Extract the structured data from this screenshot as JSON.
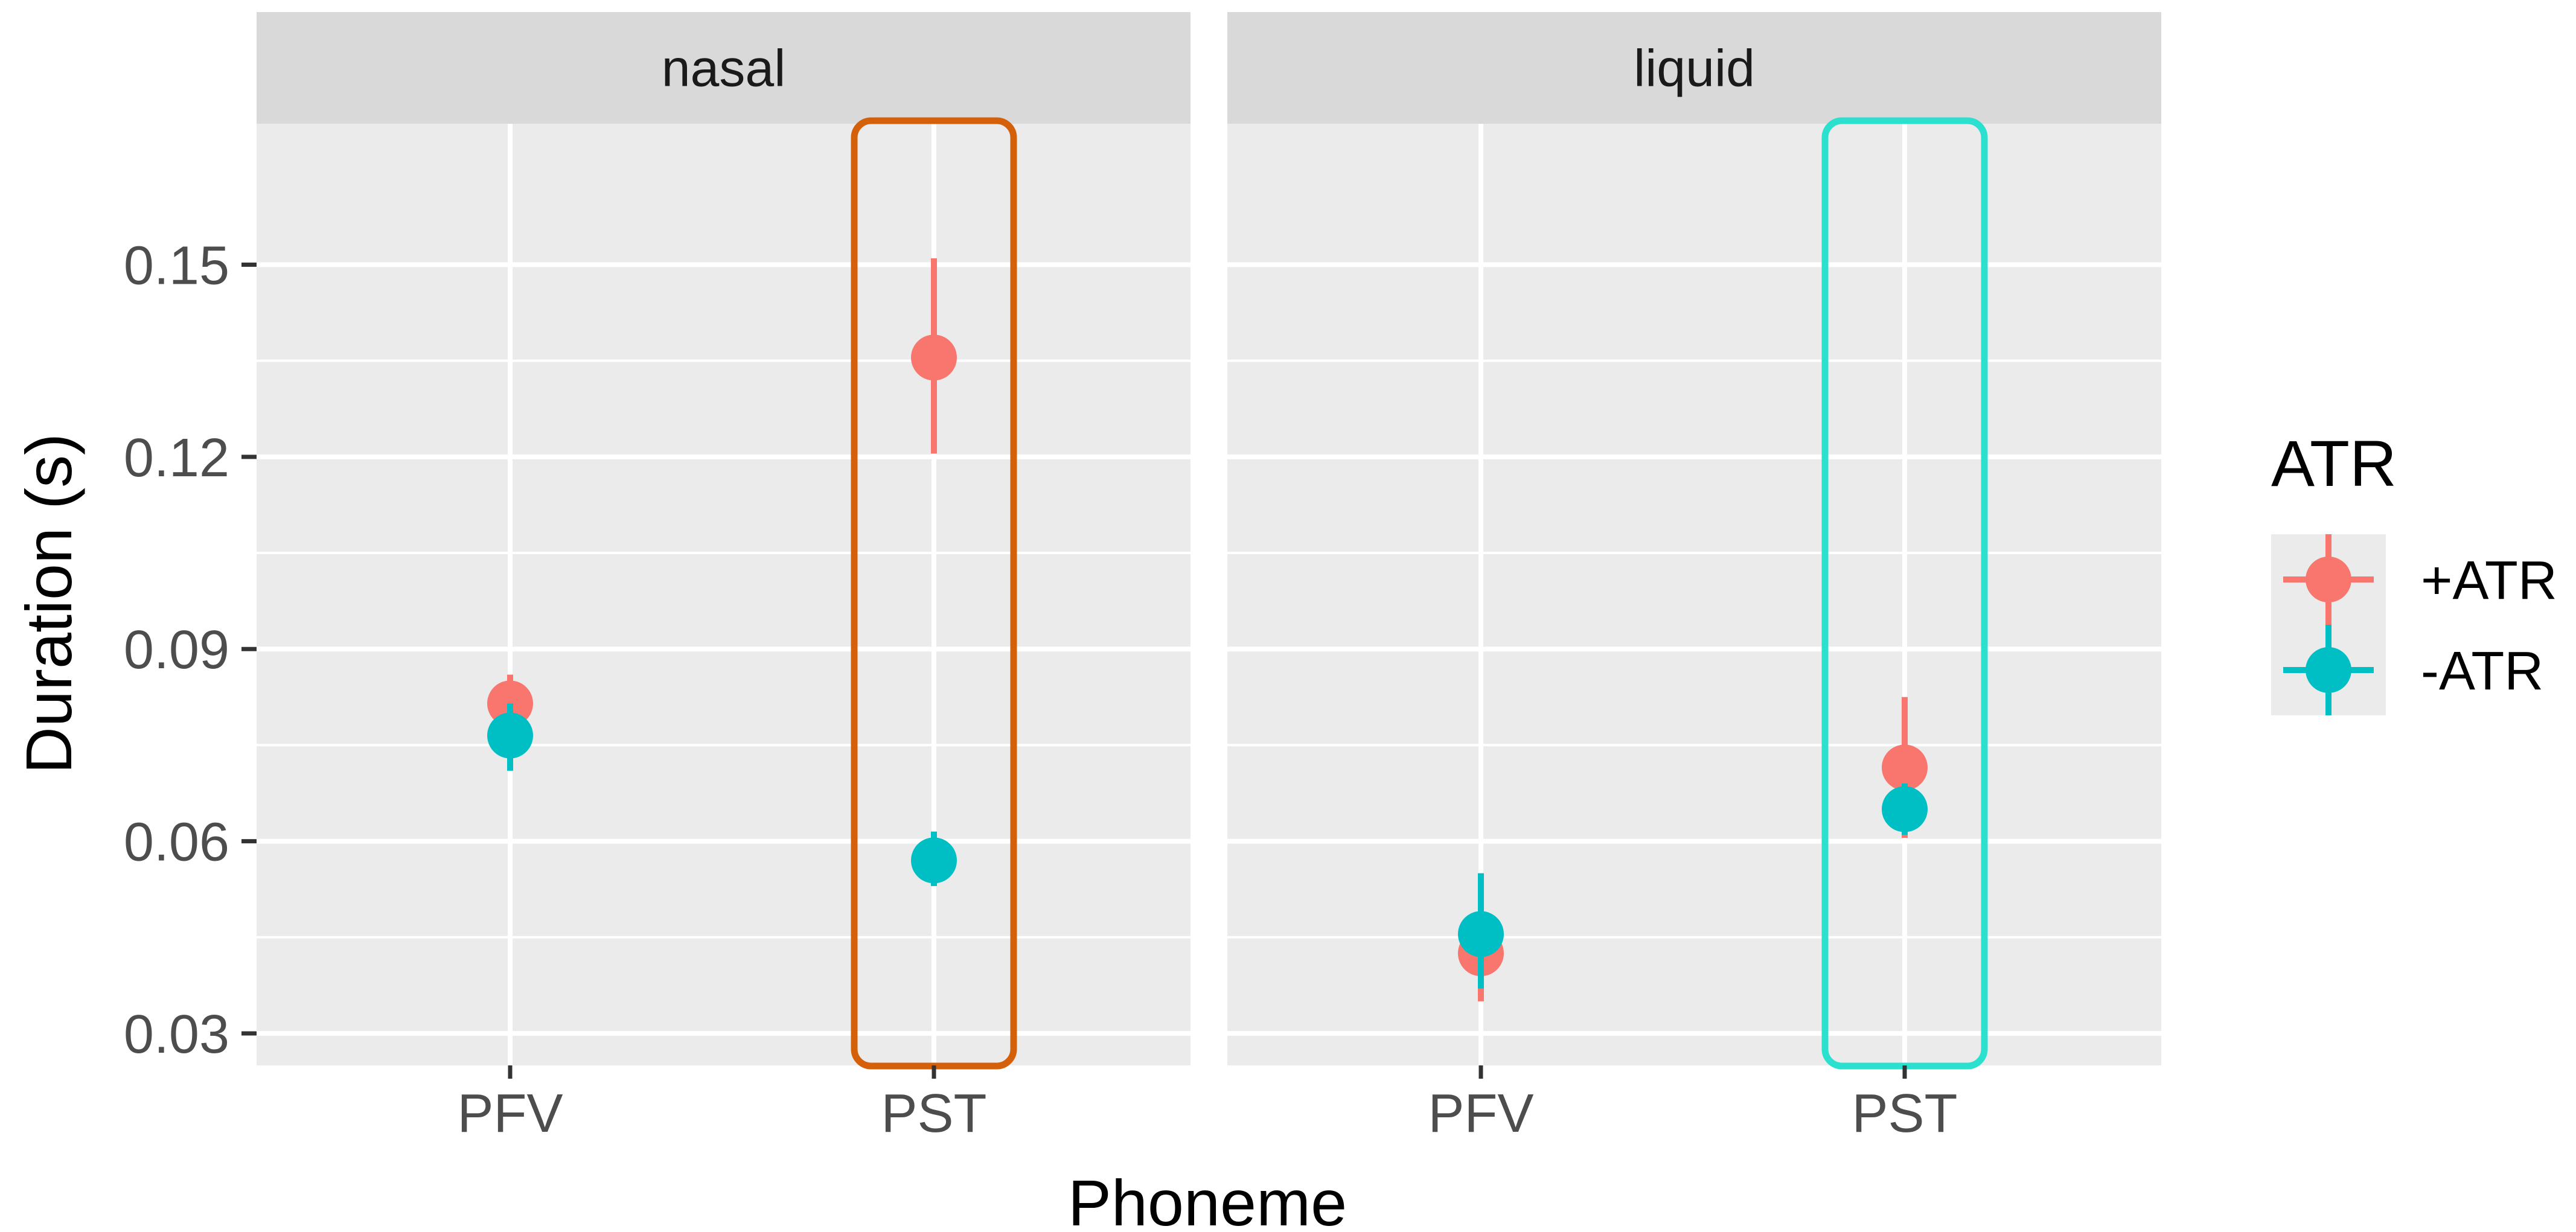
{
  "chart_data": {
    "type": "scatter",
    "subtype": "pointrange-faceted",
    "xlabel": "Phoneme",
    "ylabel": "Duration (s)",
    "ylim": [
      0.025,
      0.172
    ],
    "yticks": [
      0.03,
      0.06,
      0.09,
      0.12,
      0.15
    ],
    "ytick_labels": [
      "0.03",
      "0.06",
      "0.09",
      "0.12",
      "0.15"
    ],
    "categories": [
      "PFV",
      "PST"
    ],
    "grid": true,
    "legend": {
      "title": "ATR",
      "position": "right",
      "entries": [
        "+ATR",
        "-ATR"
      ]
    },
    "colors": {
      "+ATR": "#F8766D",
      "-ATR": "#00BFC4",
      "panel_bg": "#EBEBEB",
      "strip_bg": "#D9D9D9"
    },
    "facets": [
      {
        "label": "nasal",
        "highlight": {
          "category": "PST",
          "color": "#D5600A"
        },
        "series": [
          {
            "name": "+ATR",
            "points": [
              {
                "x": "PFV",
                "y": 0.0815,
                "ymin": 0.077,
                "ymax": 0.086
              },
              {
                "x": "PST",
                "y": 0.1355,
                "ymin": 0.1205,
                "ymax": 0.151
              }
            ]
          },
          {
            "name": "-ATR",
            "points": [
              {
                "x": "PFV",
                "y": 0.0765,
                "ymin": 0.071,
                "ymax": 0.0815
              },
              {
                "x": "PST",
                "y": 0.057,
                "ymin": 0.053,
                "ymax": 0.0615
              }
            ]
          }
        ]
      },
      {
        "label": "liquid",
        "highlight": {
          "category": "PST",
          "color": "#2BE0CF"
        },
        "series": [
          {
            "name": "+ATR",
            "points": [
              {
                "x": "PFV",
                "y": 0.0425,
                "ymin": 0.035,
                "ymax": 0.05
              },
              {
                "x": "PST",
                "y": 0.0715,
                "ymin": 0.0605,
                "ymax": 0.0825
              }
            ]
          },
          {
            "name": "-ATR",
            "points": [
              {
                "x": "PFV",
                "y": 0.0455,
                "ymin": 0.037,
                "ymax": 0.055
              },
              {
                "x": "PST",
                "y": 0.065,
                "ymin": 0.061,
                "ymax": 0.069
              }
            ]
          }
        ]
      }
    ]
  }
}
